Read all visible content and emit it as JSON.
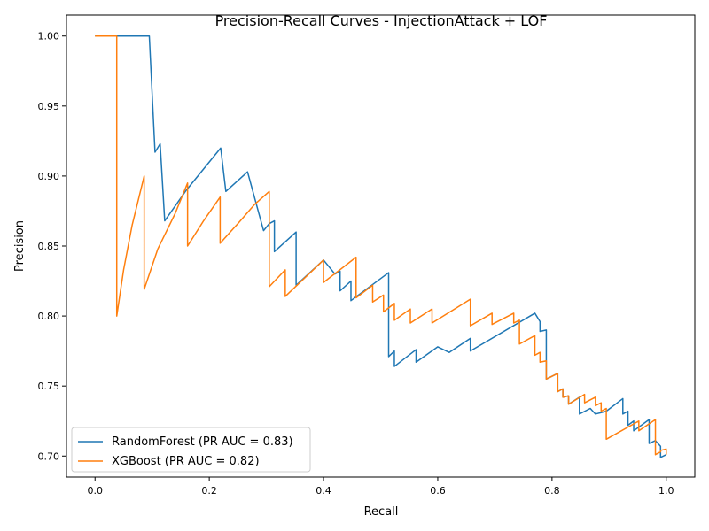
{
  "chart_data": {
    "type": "line",
    "title": "Precision-Recall Curves - InjectionAttack + LOF",
    "xlabel": "Recall",
    "ylabel": "Precision",
    "xlim": [
      -0.05,
      1.05
    ],
    "ylim": [
      0.685,
      1.015
    ],
    "xticks": [
      0.0,
      0.2,
      0.4,
      0.6,
      0.8,
      1.0
    ],
    "xtick_labels": [
      "0.0",
      "0.2",
      "0.4",
      "0.6",
      "0.8",
      "1.0"
    ],
    "yticks": [
      0.7,
      0.75,
      0.8,
      0.85,
      0.9,
      0.95,
      1.0
    ],
    "ytick_labels": [
      "0.70",
      "0.75",
      "0.80",
      "0.85",
      "0.90",
      "0.95",
      "1.00"
    ],
    "grid": false,
    "legend_position": "lower-left",
    "series": [
      {
        "name": "RandomForest (PR AUC = 0.83)",
        "color": "#1f77b4",
        "points": [
          [
            0.0,
            1.0
          ],
          [
            0.095,
            1.0
          ],
          [
            0.105,
            0.917
          ],
          [
            0.114,
            0.923
          ],
          [
            0.122,
            0.868
          ],
          [
            0.16,
            0.89
          ],
          [
            0.19,
            0.905
          ],
          [
            0.22,
            0.92
          ],
          [
            0.229,
            0.889
          ],
          [
            0.267,
            0.903
          ],
          [
            0.295,
            0.861
          ],
          [
            0.305,
            0.866
          ],
          [
            0.314,
            0.868
          ],
          [
            0.314,
            0.846
          ],
          [
            0.352,
            0.86
          ],
          [
            0.352,
            0.822
          ],
          [
            0.4,
            0.84
          ],
          [
            0.42,
            0.83
          ],
          [
            0.429,
            0.832
          ],
          [
            0.429,
            0.818
          ],
          [
            0.448,
            0.825
          ],
          [
            0.448,
            0.811
          ],
          [
            0.514,
            0.831
          ],
          [
            0.514,
            0.771
          ],
          [
            0.524,
            0.775
          ],
          [
            0.524,
            0.764
          ],
          [
            0.562,
            0.776
          ],
          [
            0.562,
            0.767
          ],
          [
            0.6,
            0.778
          ],
          [
            0.62,
            0.774
          ],
          [
            0.657,
            0.784
          ],
          [
            0.657,
            0.775
          ],
          [
            0.77,
            0.802
          ],
          [
            0.779,
            0.796
          ],
          [
            0.779,
            0.789
          ],
          [
            0.79,
            0.79
          ],
          [
            0.79,
            0.755
          ],
          [
            0.81,
            0.759
          ],
          [
            0.81,
            0.746
          ],
          [
            0.819,
            0.748
          ],
          [
            0.819,
            0.742
          ],
          [
            0.829,
            0.743
          ],
          [
            0.829,
            0.737
          ],
          [
            0.848,
            0.742
          ],
          [
            0.848,
            0.73
          ],
          [
            0.867,
            0.734
          ],
          [
            0.876,
            0.73
          ],
          [
            0.886,
            0.731
          ],
          [
            0.895,
            0.732
          ],
          [
            0.924,
            0.741
          ],
          [
            0.924,
            0.73
          ],
          [
            0.933,
            0.732
          ],
          [
            0.933,
            0.722
          ],
          [
            0.943,
            0.725
          ],
          [
            0.943,
            0.718
          ],
          [
            0.97,
            0.726
          ],
          [
            0.97,
            0.709
          ],
          [
            0.981,
            0.711
          ],
          [
            0.99,
            0.707
          ],
          [
            0.99,
            0.699
          ],
          [
            1.0,
            0.701
          ]
        ]
      },
      {
        "name": "XGBoost (PR AUC = 0.82)",
        "color": "#ff7f0e",
        "points": [
          [
            0.0,
            1.0
          ],
          [
            0.038,
            1.0
          ],
          [
            0.038,
            0.8
          ],
          [
            0.05,
            0.833
          ],
          [
            0.065,
            0.865
          ],
          [
            0.086,
            0.9
          ],
          [
            0.086,
            0.819
          ],
          [
            0.11,
            0.848
          ],
          [
            0.14,
            0.873
          ],
          [
            0.162,
            0.895
          ],
          [
            0.162,
            0.85
          ],
          [
            0.19,
            0.868
          ],
          [
            0.219,
            0.885
          ],
          [
            0.219,
            0.852
          ],
          [
            0.25,
            0.866
          ],
          [
            0.28,
            0.88
          ],
          [
            0.305,
            0.889
          ],
          [
            0.305,
            0.821
          ],
          [
            0.333,
            0.833
          ],
          [
            0.333,
            0.814
          ],
          [
            0.4,
            0.84
          ],
          [
            0.4,
            0.824
          ],
          [
            0.457,
            0.842
          ],
          [
            0.457,
            0.813
          ],
          [
            0.486,
            0.822
          ],
          [
            0.486,
            0.81
          ],
          [
            0.505,
            0.815
          ],
          [
            0.505,
            0.803
          ],
          [
            0.524,
            0.809
          ],
          [
            0.524,
            0.797
          ],
          [
            0.552,
            0.805
          ],
          [
            0.552,
            0.795
          ],
          [
            0.59,
            0.805
          ],
          [
            0.59,
            0.795
          ],
          [
            0.657,
            0.812
          ],
          [
            0.657,
            0.793
          ],
          [
            0.695,
            0.802
          ],
          [
            0.695,
            0.794
          ],
          [
            0.733,
            0.802
          ],
          [
            0.733,
            0.795
          ],
          [
            0.743,
            0.797
          ],
          [
            0.743,
            0.78
          ],
          [
            0.77,
            0.786
          ],
          [
            0.77,
            0.772
          ],
          [
            0.779,
            0.774
          ],
          [
            0.779,
            0.767
          ],
          [
            0.79,
            0.768
          ],
          [
            0.79,
            0.755
          ],
          [
            0.81,
            0.759
          ],
          [
            0.81,
            0.746
          ],
          [
            0.819,
            0.748
          ],
          [
            0.819,
            0.742
          ],
          [
            0.829,
            0.743
          ],
          [
            0.829,
            0.737
          ],
          [
            0.857,
            0.744
          ],
          [
            0.857,
            0.738
          ],
          [
            0.876,
            0.742
          ],
          [
            0.876,
            0.736
          ],
          [
            0.886,
            0.738
          ],
          [
            0.886,
            0.732
          ],
          [
            0.895,
            0.734
          ],
          [
            0.895,
            0.712
          ],
          [
            0.952,
            0.725
          ],
          [
            0.952,
            0.718
          ],
          [
            0.981,
            0.726
          ],
          [
            0.981,
            0.701
          ],
          [
            0.99,
            0.703
          ],
          [
            0.99,
            0.704
          ],
          [
            1.0,
            0.705
          ],
          [
            1.0,
            0.701
          ]
        ]
      }
    ]
  }
}
